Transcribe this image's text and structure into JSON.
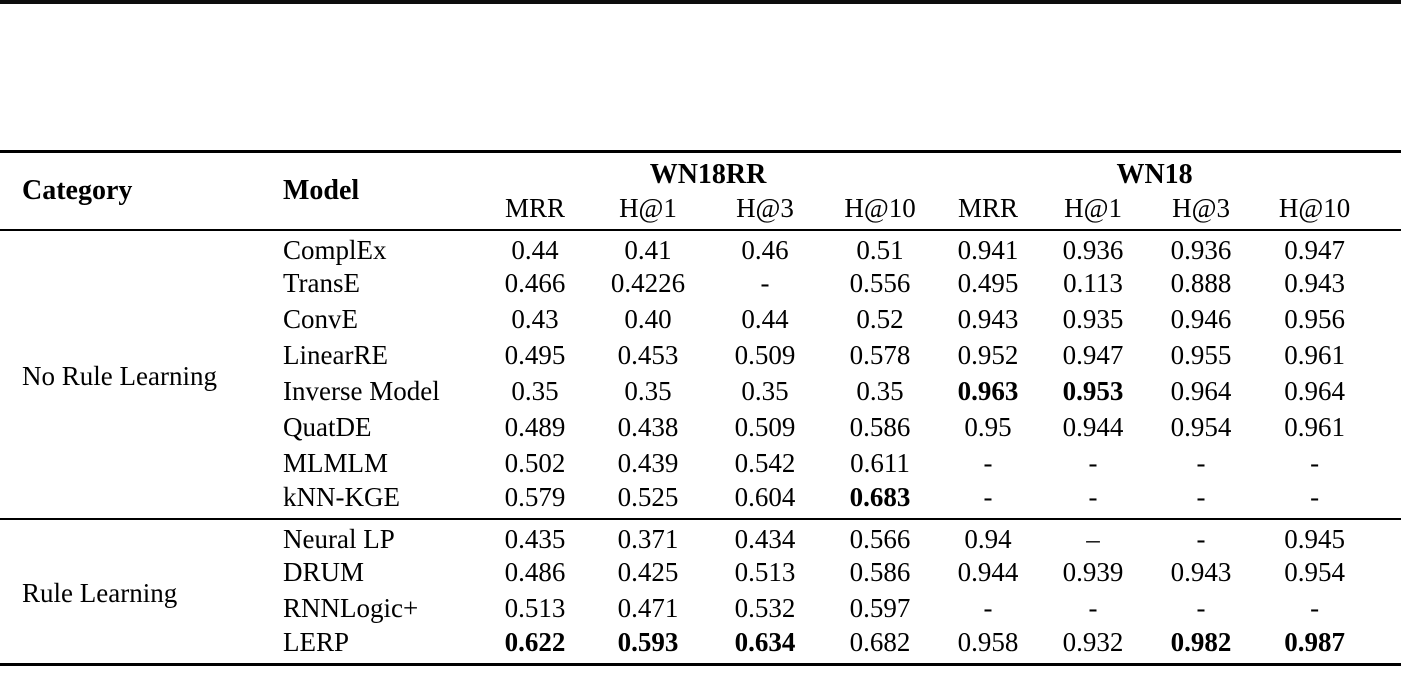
{
  "page": {
    "background": "#ffffff",
    "text_color": "#000000"
  },
  "table": {
    "header": {
      "category": "Category",
      "model": "Model",
      "groups": [
        {
          "label": "WN18RR",
          "metrics": [
            "MRR",
            "H@1",
            "H@3",
            "H@10"
          ]
        },
        {
          "label": "WN18",
          "metrics": [
            "MRR",
            "H@1",
            "H@3",
            "H@10"
          ]
        }
      ]
    },
    "sections": [
      {
        "category": "No Rule Learning",
        "rows": [
          {
            "model": "ComplEx",
            "values": [
              "0.44",
              "0.41",
              "0.46",
              "0.51",
              "0.941",
              "0.936",
              "0.936",
              "0.947"
            ],
            "bold": []
          },
          {
            "model": "TransE",
            "values": [
              "0.466",
              "0.4226",
              "-",
              "0.556",
              "0.495",
              "0.113",
              "0.888",
              "0.943"
            ],
            "bold": []
          },
          {
            "model": "ConvE",
            "values": [
              "0.43",
              "0.40",
              "0.44",
              "0.52",
              "0.943",
              "0.935",
              "0.946",
              "0.956"
            ],
            "bold": []
          },
          {
            "model": "LinearRE",
            "values": [
              "0.495",
              "0.453",
              "0.509",
              "0.578",
              "0.952",
              "0.947",
              "0.955",
              "0.961"
            ],
            "bold": []
          },
          {
            "model": "Inverse Model",
            "values": [
              "0.35",
              "0.35",
              "0.35",
              "0.35",
              "0.963",
              "0.953",
              "0.964",
              "0.964"
            ],
            "bold": [
              4,
              5
            ]
          },
          {
            "model": "QuatDE",
            "values": [
              "0.489",
              "0.438",
              "0.509",
              "0.586",
              "0.95",
              "0.944",
              "0.954",
              "0.961"
            ],
            "bold": []
          },
          {
            "model": "MLMLM",
            "values": [
              "0.502",
              "0.439",
              "0.542",
              "0.611",
              "-",
              "-",
              "-",
              "-"
            ],
            "bold": []
          },
          {
            "model": "kNN-KGE",
            "values": [
              "0.579",
              "0.525",
              "0.604",
              "0.683",
              "-",
              "-",
              "-",
              "-"
            ],
            "bold": [
              3
            ]
          }
        ]
      },
      {
        "category": "Rule Learning",
        "rows": [
          {
            "model": "Neural LP",
            "values": [
              "0.435",
              "0.371",
              "0.434",
              "0.566",
              "0.94",
              "–",
              "-",
              "0.945"
            ],
            "bold": []
          },
          {
            "model": "DRUM",
            "values": [
              "0.486",
              "0.425",
              "0.513",
              "0.586",
              "0.944",
              "0.939",
              "0.943",
              "0.954"
            ],
            "bold": []
          },
          {
            "model": "RNNLogic+",
            "values": [
              "0.513",
              "0.471",
              "0.532",
              "0.597",
              "-",
              "-",
              "-",
              "-"
            ],
            "bold": []
          },
          {
            "model": "LERP",
            "values": [
              "0.622",
              "0.593",
              "0.634",
              "0.682",
              "0.958",
              "0.932",
              "0.982",
              "0.987"
            ],
            "bold": [
              0,
              1,
              2,
              6,
              7
            ]
          }
        ]
      }
    ]
  }
}
